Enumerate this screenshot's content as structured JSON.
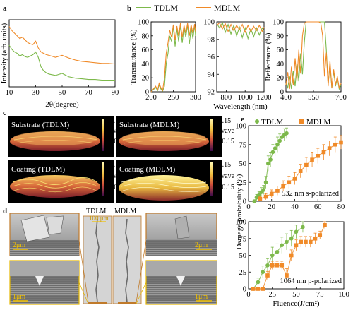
{
  "colors": {
    "tdlm": "#7db94b",
    "mdlm": "#f08a28",
    "frame_orange": "#c07a2a",
    "frame_yellow": "#e6b800"
  },
  "legend_top": {
    "tdlm": "TDLM",
    "mdlm": "MDLM"
  },
  "panel_letters": {
    "a": "a",
    "b": "b",
    "c": "c",
    "d": "d",
    "e": "e"
  },
  "panel_c": {
    "tiles": [
      {
        "label": "Substrate (TDLM)",
        "style": "substrate"
      },
      {
        "label": "Substrate (MDLM)",
        "style": "substrate"
      },
      {
        "label": "Coating (TDLM)",
        "style": "coating_t"
      },
      {
        "label": "Coating (MDLM)",
        "style": "coating_m"
      }
    ],
    "colorbar": {
      "top": "+0.15",
      "mid": "wave",
      "bottom": "-0.15"
    }
  },
  "panel_d": {
    "center_labels": {
      "left": "TDLM",
      "right": "MDLM"
    },
    "scale_center": "100 μm",
    "scale_upper": "2μm",
    "scale_lower": "1μm"
  },
  "chart_data": [
    {
      "id": "a",
      "type": "line",
      "xlabel": "2θ(degree)",
      "ylabel": "Intensity (arb. units)",
      "xlim": [
        10,
        90
      ],
      "xticks": [
        10,
        30,
        50,
        70,
        90
      ],
      "series": [
        {
          "name": "MDLM",
          "x": [
            10,
            12,
            14,
            16,
            18,
            20,
            22,
            24,
            26,
            28,
            30,
            32,
            34,
            36,
            38,
            40,
            45,
            50,
            55,
            60,
            65,
            70,
            75,
            80,
            85,
            90
          ],
          "y": [
            0.9,
            0.84,
            0.8,
            0.76,
            0.72,
            0.74,
            0.7,
            0.66,
            0.64,
            0.63,
            0.68,
            0.58,
            0.52,
            0.5,
            0.48,
            0.47,
            0.44,
            0.47,
            0.43,
            0.4,
            0.38,
            0.37,
            0.36,
            0.35,
            0.35,
            0.34
          ]
        },
        {
          "name": "TDLM",
          "x": [
            10,
            12,
            14,
            16,
            18,
            20,
            22,
            24,
            26,
            28,
            30,
            32,
            34,
            36,
            38,
            40,
            45,
            50,
            55,
            60,
            65,
            70,
            75,
            80,
            85,
            90
          ],
          "y": [
            0.62,
            0.56,
            0.52,
            0.5,
            0.46,
            0.48,
            0.45,
            0.44,
            0.46,
            0.48,
            0.52,
            0.44,
            0.3,
            0.24,
            0.21,
            0.19,
            0.17,
            0.2,
            0.15,
            0.13,
            0.12,
            0.11,
            0.11,
            0.1,
            0.1,
            0.1
          ]
        }
      ]
    },
    {
      "id": "b1",
      "type": "line",
      "ylabel": "Transmittance (%)",
      "xlim": [
        200,
        300
      ],
      "ylim": [
        0,
        100
      ],
      "xticks": [
        200,
        250,
        300
      ],
      "yticks": [
        0,
        20,
        40,
        60,
        80,
        100
      ],
      "series": [
        {
          "name": "TDLM",
          "x": [
            200,
            205,
            210,
            215,
            218,
            222,
            226,
            230,
            234,
            238,
            242,
            246,
            250,
            254,
            258,
            262,
            266,
            270,
            274,
            278,
            282,
            286,
            290,
            294,
            298,
            300
          ],
          "y": [
            0,
            3,
            6,
            2,
            10,
            4,
            1,
            8,
            40,
            55,
            80,
            72,
            94,
            65,
            90,
            72,
            96,
            70,
            92,
            78,
            96,
            68,
            92,
            76,
            96,
            80
          ]
        },
        {
          "name": "MDLM",
          "x": [
            200,
            205,
            210,
            215,
            218,
            222,
            226,
            230,
            234,
            238,
            242,
            246,
            250,
            254,
            258,
            262,
            266,
            270,
            274,
            278,
            282,
            286,
            290,
            294,
            298,
            300
          ],
          "y": [
            0,
            4,
            8,
            3,
            12,
            6,
            2,
            20,
            55,
            70,
            88,
            78,
            96,
            74,
            94,
            80,
            98,
            78,
            95,
            84,
            98,
            80,
            96,
            84,
            97,
            86
          ]
        }
      ]
    },
    {
      "id": "b2",
      "type": "line",
      "xlabel": "Wavelength (nm)",
      "xlim": [
        700,
        1200
      ],
      "ylim": [
        92,
        100
      ],
      "xticks": [
        800,
        1000,
        1200
      ],
      "yticks": [
        92,
        94,
        96,
        98,
        100
      ],
      "series": [
        {
          "name": "TDLM",
          "x": [
            700,
            730,
            760,
            790,
            820,
            850,
            880,
            910,
            940,
            970,
            1000,
            1030,
            1060,
            1090,
            1120,
            1150,
            1180,
            1200
          ],
          "y": [
            99.8,
            99.3,
            99.9,
            98.8,
            99.7,
            98.6,
            99.6,
            98.4,
            99.4,
            98.2,
            99.3,
            98.1,
            99.2,
            98.3,
            99.3,
            98.5,
            99.3,
            99.0
          ]
        },
        {
          "name": "MDLM",
          "x": [
            700,
            730,
            760,
            790,
            820,
            850,
            880,
            910,
            940,
            970,
            1000,
            1030,
            1060,
            1090,
            1120,
            1150,
            1180,
            1200
          ],
          "y": [
            99.6,
            99.9,
            99.2,
            99.8,
            98.9,
            99.7,
            99.0,
            99.6,
            99.1,
            99.7,
            98.8,
            99.6,
            98.9,
            99.5,
            99.0,
            99.6,
            98.9,
            99.4
          ]
        }
      ]
    },
    {
      "id": "b3",
      "type": "line",
      "ylabel": "Reflectance (%)",
      "xlim": [
        400,
        700
      ],
      "ylim": [
        0,
        100
      ],
      "xticks": [
        400,
        550,
        700
      ],
      "yticks": [
        0,
        20,
        40,
        60,
        80,
        100
      ],
      "series": [
        {
          "name": "TDLM",
          "x": [
            400,
            410,
            420,
            430,
            440,
            450,
            460,
            470,
            480,
            490,
            500,
            510,
            520,
            530,
            540,
            550,
            560,
            570,
            580,
            590,
            600,
            610,
            620,
            630,
            640,
            650,
            660,
            670,
            680,
            690,
            700
          ],
          "y": [
            12,
            6,
            22,
            4,
            30,
            8,
            40,
            15,
            55,
            25,
            70,
            100,
            100,
            100,
            100,
            100,
            100,
            100,
            100,
            100,
            100,
            100,
            60,
            10,
            40,
            5,
            30,
            8,
            20,
            4,
            10
          ]
        },
        {
          "name": "MDLM",
          "x": [
            400,
            410,
            420,
            430,
            440,
            450,
            460,
            470,
            480,
            490,
            500,
            510,
            520,
            530,
            540,
            550,
            560,
            570,
            580,
            590,
            600,
            610,
            620,
            630,
            640,
            650,
            660,
            670,
            680,
            690,
            700
          ],
          "y": [
            10,
            28,
            4,
            36,
            10,
            48,
            16,
            60,
            26,
            80,
            98,
            100,
            100,
            100,
            100,
            100,
            100,
            100,
            100,
            98,
            80,
            22,
            56,
            8,
            44,
            6,
            32,
            10,
            22,
            6,
            12
          ]
        }
      ]
    },
    {
      "id": "e1",
      "type": "scatter",
      "legend": {
        "tdlm": "TDLM",
        "mdlm": "MDLM"
      },
      "annotation": "532 nm s-polarized",
      "xlim": [
        0,
        80
      ],
      "ylim": [
        0,
        100
      ],
      "xticks": [
        0,
        20,
        40,
        60,
        80
      ],
      "yticks": [
        0,
        25,
        50,
        75,
        100
      ],
      "series": [
        {
          "name": "TDLM",
          "x": [
            5,
            7,
            9,
            11,
            13,
            15,
            17,
            19,
            21,
            23,
            25,
            27,
            29,
            31,
            33
          ],
          "y": [
            0,
            5,
            8,
            12,
            15,
            25,
            50,
            55,
            65,
            70,
            75,
            80,
            85,
            88,
            90
          ],
          "err": [
            0,
            4,
            5,
            6,
            6,
            8,
            10,
            10,
            10,
            10,
            10,
            9,
            8,
            8,
            7
          ]
        },
        {
          "name": "MDLM",
          "x": [
            10,
            15,
            20,
            25,
            30,
            35,
            40,
            45,
            50,
            55,
            60,
            65,
            70,
            75,
            80
          ],
          "y": [
            3,
            6,
            10,
            14,
            20,
            25,
            30,
            40,
            48,
            55,
            60,
            65,
            70,
            75,
            78
          ],
          "err": [
            3,
            4,
            5,
            6,
            7,
            8,
            8,
            9,
            10,
            10,
            10,
            10,
            10,
            10,
            9
          ]
        }
      ]
    },
    {
      "id": "e2",
      "type": "scatter",
      "annotation": "1064 nm p-polarized",
      "xlabel": "Fluence(J/cm²)",
      "xlim": [
        0,
        100
      ],
      "ylim": [
        0,
        100
      ],
      "xticks": [
        0,
        25,
        50,
        75,
        100
      ],
      "yticks": [
        0,
        25,
        50,
        75,
        100
      ],
      "series": [
        {
          "name": "TDLM",
          "x": [
            5,
            10,
            15,
            20,
            25,
            30,
            35,
            40,
            45,
            50,
            57
          ],
          "y": [
            0,
            10,
            25,
            35,
            50,
            55,
            65,
            70,
            75,
            85,
            92
          ],
          "err": [
            0,
            6,
            9,
            10,
            12,
            12,
            12,
            12,
            12,
            10,
            8
          ]
        },
        {
          "name": "MDLM",
          "x": [
            5,
            10,
            15,
            20,
            25,
            30,
            35,
            40,
            45,
            50,
            55,
            60,
            65,
            70,
            75,
            80
          ],
          "y": [
            0,
            0,
            0,
            20,
            35,
            35,
            35,
            20,
            50,
            65,
            70,
            70,
            70,
            75,
            80,
            95
          ],
          "err": [
            0,
            0,
            0,
            6,
            6,
            6,
            6,
            10,
            8,
            8,
            8,
            8,
            8,
            8,
            6,
            5
          ]
        }
      ]
    }
  ],
  "panel_e_ylabel": "Damage probability (%)"
}
